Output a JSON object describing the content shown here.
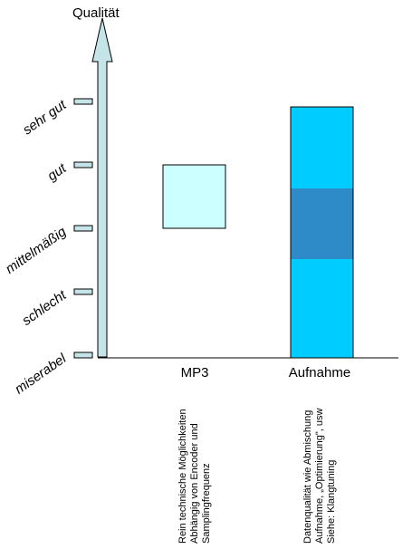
{
  "axis": {
    "title": "Qualität",
    "levels": [
      "miserabel",
      "schlecht",
      "mittelmäßig",
      "gut",
      "sehr gut"
    ]
  },
  "columns": [
    {
      "label": "MP3",
      "range": [
        "mittelmäßig",
        "gut"
      ],
      "fill": "#ccffff",
      "notes": [
        "Rein technische Möglichkeiten",
        "Abhängig von Encoder und",
        "Samplingfrequenz"
      ]
    },
    {
      "label": "Aufnahme",
      "range": [
        "miserabel",
        "sehr gut"
      ],
      "fill": "#00ccff",
      "inner_range": [
        "mittelmäßig",
        "gut"
      ],
      "inner_fill": "#2e8bc8",
      "notes": [
        "Datenqualität wie Abmischung",
        "Aufnahme, „Optimierung\", usw",
        "Siehe: Klangtuning"
      ]
    }
  ],
  "colors": {
    "axis_fill": "#c5e4e8",
    "tick_fill": "#c5e4e8",
    "line": "#000000"
  }
}
